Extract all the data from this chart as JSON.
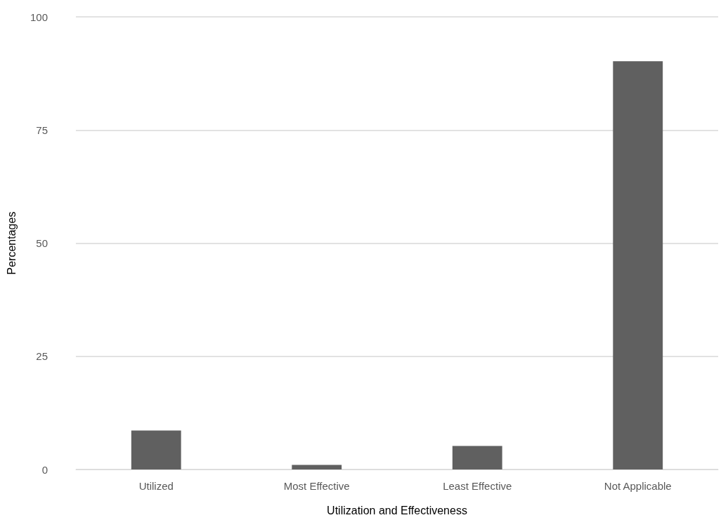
{
  "chart_data": {
    "type": "bar",
    "xlabel": "Utilization and Effectiveness",
    "ylabel": "Percentages",
    "categories": [
      "Utilized",
      "Most Effective",
      "Least Effective",
      "Not Applicable"
    ],
    "values": [
      8.6,
      1,
      5.2,
      90.2
    ],
    "color": "#606060",
    "ylim": [
      0,
      100
    ],
    "yticks": [
      0,
      25,
      50,
      75,
      100
    ],
    "grid": "y"
  }
}
